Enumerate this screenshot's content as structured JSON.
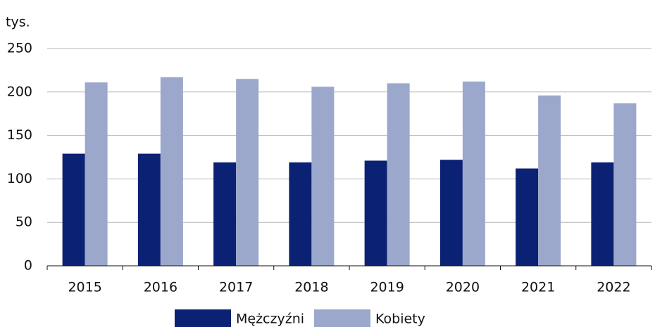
{
  "chart_data": {
    "type": "bar",
    "y_axis_label": "tys.",
    "categories": [
      "2015",
      "2016",
      "2017",
      "2018",
      "2019",
      "2020",
      "2021",
      "2022"
    ],
    "series": [
      {
        "name": "Mężczyźni",
        "color": "#0b2174",
        "values": [
          129,
          129,
          119,
          119,
          121,
          122,
          112,
          119
        ]
      },
      {
        "name": "Kobiety",
        "color": "#9ba8cc",
        "values": [
          211,
          217,
          215,
          206,
          210,
          212,
          196,
          187
        ]
      }
    ],
    "ylim": [
      0,
      250
    ],
    "yticks": [
      0,
      50,
      100,
      150,
      200,
      250
    ],
    "grid": true,
    "legend": "bottom"
  }
}
